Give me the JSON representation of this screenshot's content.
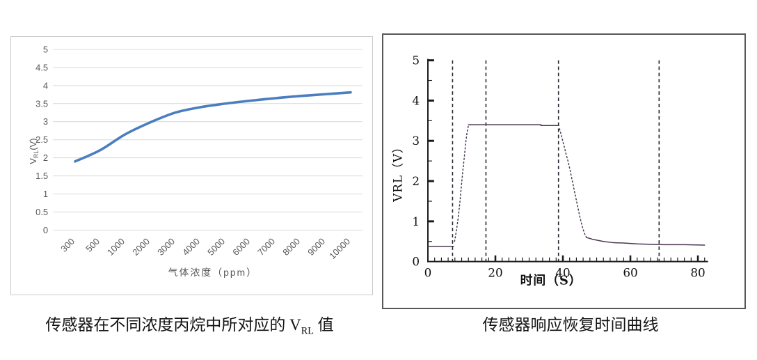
{
  "left_chart": {
    "caption": {
      "pre": "传感器在不同浓度丙烷中所对应的 V",
      "sub": "RL",
      "post": " 值"
    },
    "ylabel_parts": {
      "pre": "V",
      "sub": "RL",
      "post": "(V)"
    }
  },
  "right_chart": {
    "caption": "传感器响应恢复时间曲线"
  },
  "chart_data": [
    {
      "type": "line",
      "title": "传感器在不同浓度丙烷中所对应的 VRL 值",
      "xlabel": "气体浓度（ppm）",
      "ylabel": "VRL(V)",
      "categories": [
        "300",
        "500",
        "1000",
        "2000",
        "3000",
        "4000",
        "5000",
        "6000",
        "7000",
        "8000",
        "9000",
        "10000"
      ],
      "values": [
        1.9,
        2.21,
        2.65,
        2.98,
        3.25,
        3.4,
        3.5,
        3.58,
        3.65,
        3.71,
        3.76,
        3.81
      ],
      "ylim": [
        0,
        5
      ],
      "ytick_step": 0.5,
      "grid": true,
      "legend": "none",
      "colors": {
        "line": "#4a7ec0",
        "grid": "#d9d9d9",
        "tick_text": "#595959",
        "frame": "#c9c9c9"
      }
    },
    {
      "type": "line",
      "title": "传感器响应恢复时间曲线",
      "xlabel": "时间（S）",
      "ylabel": "VRL（V）",
      "xlim": [
        0,
        83
      ],
      "ylim": [
        0,
        5
      ],
      "xticks_major": [
        0,
        20,
        40,
        60,
        80
      ],
      "xtick_minor_step": 2,
      "yticks_major": [
        0,
        1,
        2,
        3,
        4,
        5
      ],
      "ytick_minor_step": 0.5,
      "grid": false,
      "legend": "none",
      "dashed_vlines_x": [
        7.3,
        17.2,
        38.7,
        68.5
      ],
      "segments": [
        {
          "style": "solid",
          "points": [
            [
              0,
              0.38
            ],
            [
              7.6,
              0.38
            ]
          ]
        },
        {
          "style": "dotted",
          "points": [
            [
              7.9,
              0.5
            ],
            [
              8.5,
              0.8
            ],
            [
              9,
              1.1
            ],
            [
              9.5,
              1.5
            ],
            [
              10,
              1.95
            ],
            [
              10.4,
              2.3
            ],
            [
              10.8,
              2.6
            ],
            [
              11.2,
              2.95
            ],
            [
              11.6,
              3.2
            ],
            [
              12,
              3.38
            ]
          ]
        },
        {
          "style": "solid",
          "points": [
            [
              12,
              3.4
            ],
            [
              33.5,
              3.4
            ],
            [
              33.5,
              3.38
            ],
            [
              38.8,
              3.38
            ]
          ]
        },
        {
          "style": "dotted",
          "points": [
            [
              39,
              3.3
            ],
            [
              39.5,
              3.15
            ],
            [
              40,
              2.98
            ],
            [
              40.5,
              2.82
            ],
            [
              41,
              2.65
            ],
            [
              41.5,
              2.5
            ],
            [
              42,
              2.32
            ],
            [
              42.5,
              2.12
            ],
            [
              43,
              1.92
            ],
            [
              43.5,
              1.72
            ],
            [
              44,
              1.52
            ],
            [
              44.5,
              1.32
            ],
            [
              45,
              1.12
            ],
            [
              45.5,
              0.95
            ],
            [
              46,
              0.8
            ],
            [
              46.5,
              0.68
            ],
            [
              47,
              0.6
            ]
          ]
        },
        {
          "style": "solid",
          "points": [
            [
              47,
              0.6
            ],
            [
              49,
              0.55
            ],
            [
              52,
              0.5
            ],
            [
              55,
              0.47
            ],
            [
              58,
              0.46
            ],
            [
              62,
              0.44
            ],
            [
              66,
              0.43
            ],
            [
              70,
              0.42
            ],
            [
              76,
              0.42
            ],
            [
              82,
              0.41
            ]
          ]
        }
      ],
      "colors": {
        "line": "#4a3850",
        "dashed_line": "#26262e",
        "axis": "#1a1a1a",
        "tick_text": "#111111",
        "frame": "#58585a"
      }
    }
  ]
}
